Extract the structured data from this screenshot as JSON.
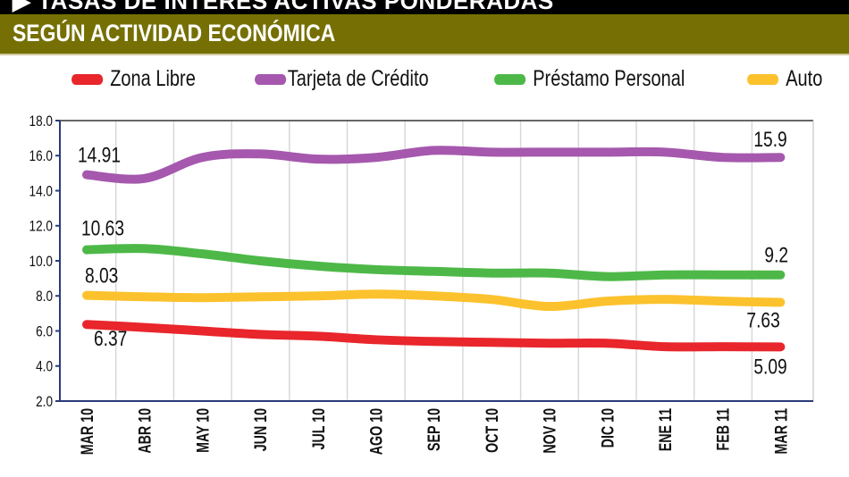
{
  "header": {
    "title": "▶ TASAS DE INTERÉS ACTIVAS PONDERADAS",
    "subtitle": "SEGÚN ACTIVIDAD ECONÓMICA"
  },
  "chart_data": {
    "type": "line",
    "title": "TASAS DE INTERÉS ACTIVAS PONDERADAS",
    "subtitle": "SEGÚN ACTIVIDAD ECONÓMICA",
    "categories": [
      "MAR 10",
      "ABR 10",
      "MAY 10",
      "JUN 10",
      "JUL 10",
      "AGO 10",
      "SEP 10",
      "OCT 10",
      "NOV 10",
      "DIC 10",
      "ENE 11",
      "FEB 11",
      "MAR 11"
    ],
    "ylim": [
      2,
      18
    ],
    "yticks": [
      "2.0",
      "4.0",
      "6.0",
      "8.0",
      "10.0",
      "12.0",
      "14.0",
      "16.0",
      "18.0"
    ],
    "grid": "vertical",
    "legend": "top",
    "series": [
      {
        "name": "Zona Libre",
        "color": "#e8262b",
        "values": [
          6.37,
          6.2,
          6.0,
          5.8,
          5.7,
          5.5,
          5.4,
          5.35,
          5.3,
          5.3,
          5.1,
          5.1,
          5.09
        ],
        "labels": {
          "first": "6.37",
          "last": "5.09"
        }
      },
      {
        "name": "Tarjeta de Crédito",
        "color": "#a558ad",
        "values": [
          14.91,
          14.7,
          15.9,
          16.1,
          15.8,
          15.9,
          16.3,
          16.2,
          16.2,
          16.2,
          16.2,
          15.9,
          15.9
        ],
        "labels": {
          "first": "14.91",
          "last": "15.9"
        }
      },
      {
        "name": "Préstamo Personal",
        "color": "#4db848",
        "values": [
          10.63,
          10.7,
          10.4,
          10.0,
          9.7,
          9.5,
          9.4,
          9.3,
          9.3,
          9.1,
          9.2,
          9.2,
          9.2
        ],
        "labels": {
          "first": "10.63",
          "last": "9.2"
        }
      },
      {
        "name": "Auto",
        "color": "#fcc22d",
        "values": [
          8.03,
          7.95,
          7.9,
          7.95,
          8.0,
          8.1,
          8.0,
          7.8,
          7.4,
          7.7,
          7.8,
          7.7,
          7.63
        ],
        "labels": {
          "first": "8.03",
          "last": "7.63"
        }
      }
    ]
  }
}
